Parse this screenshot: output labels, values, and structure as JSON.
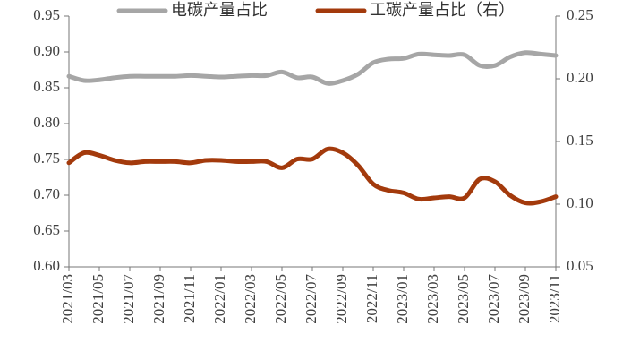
{
  "chart_data": {
    "type": "line",
    "categories": [
      "2021/03",
      null,
      "2021/05",
      null,
      "2021/07",
      null,
      "2021/09",
      null,
      "2021/11",
      null,
      "2022/01",
      null,
      "2022/03",
      null,
      "2022/05",
      null,
      "2022/07",
      null,
      "2022/09",
      null,
      "2022/11",
      null,
      "2023/01",
      null,
      "2023/03",
      null,
      "2023/05",
      null,
      "2023/07",
      null,
      "2023/09",
      null,
      "2023/11"
    ],
    "series": [
      {
        "name": "电碳产量占比",
        "color": "#a6a6a6",
        "axis": "y",
        "values": [
          0.866,
          0.86,
          0.861,
          0.864,
          0.866,
          0.866,
          0.866,
          0.866,
          0.867,
          0.866,
          0.865,
          0.866,
          0.867,
          0.867,
          0.872,
          0.864,
          0.865,
          0.856,
          0.86,
          0.869,
          0.885,
          0.89,
          0.891,
          0.897,
          0.896,
          0.895,
          0.896,
          0.881,
          0.881,
          0.893,
          0.899,
          0.897,
          0.895
        ]
      },
      {
        "name": "工碳产量占比（右）",
        "color": "#a33a0c",
        "axis": "y2",
        "values": [
          0.133,
          0.141,
          0.139,
          0.135,
          0.133,
          0.134,
          0.134,
          0.134,
          0.133,
          0.135,
          0.135,
          0.134,
          0.134,
          0.134,
          0.129,
          0.136,
          0.136,
          0.144,
          0.141,
          0.131,
          0.116,
          0.111,
          0.109,
          0.104,
          0.105,
          0.106,
          0.105,
          0.12,
          0.118,
          0.107,
          0.101,
          0.102,
          0.106
        ]
      }
    ],
    "ylim": [
      0.6,
      0.95
    ],
    "yticks": [
      {
        "value": 0.6,
        "label": "0.60"
      },
      0.65,
      {
        "value": 0.7,
        "label": "0.70"
      },
      0.75,
      {
        "value": 0.8,
        "label": "0.80"
      },
      0.85,
      {
        "value": 0.9,
        "label": "0.90"
      },
      0.95
    ],
    "y2lim": [
      0.05,
      0.25
    ],
    "y2ticks": [
      0.05,
      {
        "value": 0.1,
        "label": "0.10"
      },
      0.15,
      {
        "value": 0.2,
        "label": "0.20"
      },
      0.25
    ],
    "legend": "top",
    "grid": false
  }
}
